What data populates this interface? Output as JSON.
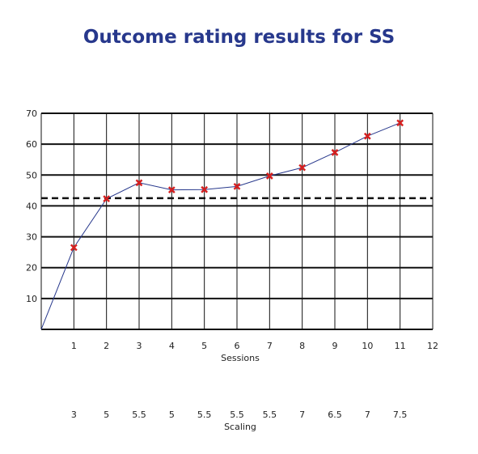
{
  "chart_data": {
    "type": "line",
    "title": "Outcome rating results for SS",
    "xlabel": "Sessions",
    "secondary_xlabel": "Scaling",
    "x_ticks": [
      "1",
      "2",
      "3",
      "4",
      "5",
      "6",
      "7",
      "8",
      "9",
      "10",
      "11",
      "12"
    ],
    "y_ticks": [
      "10",
      "20",
      "30",
      "40",
      "50",
      "60",
      "70"
    ],
    "xlim": [
      0,
      12
    ],
    "ylim": [
      0,
      70
    ],
    "grid": true,
    "series": [
      {
        "x": [
          0,
          1,
          2,
          3,
          4,
          5,
          6,
          7,
          8,
          9,
          10,
          11
        ],
        "y": [
          0,
          26.5,
          42.3,
          47.5,
          45.2,
          45.3,
          46.3,
          49.7,
          52.4,
          57.3,
          62.6,
          66.9
        ],
        "color": "#27388c",
        "marker_color": "#d62020",
        "markers_from_index": 1
      }
    ],
    "reference_line": {
      "y": 42.5,
      "style": "dashed",
      "color": "#111111"
    },
    "scaling_values": [
      "3",
      "5",
      "5.5",
      "5",
      "5.5",
      "5.5",
      "5.5",
      "7",
      "6.5",
      "7",
      "7.5"
    ],
    "colors": {
      "title": "#27388c",
      "line": "#27388c",
      "marker": "#d62020",
      "grid": "#111111"
    }
  }
}
